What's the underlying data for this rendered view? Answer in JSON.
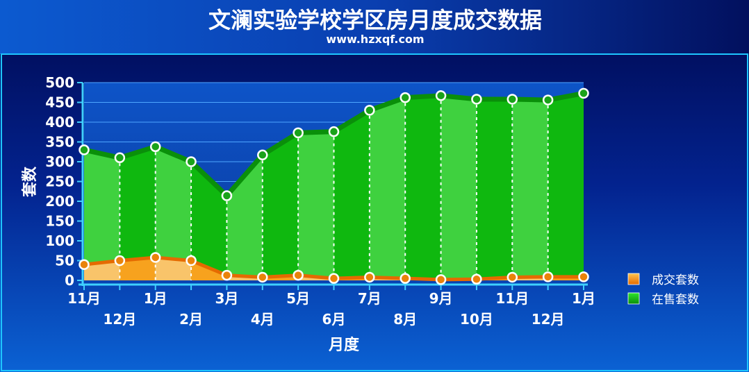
{
  "chart_data": {
    "type": "area",
    "title": "文澜实验学校学区房月度成交数据",
    "subtitle": "www.hzxqf.com",
    "xlabel": "月度",
    "ylabel": "套数",
    "ylim": [
      0,
      500
    ],
    "yticks": [
      0,
      50,
      100,
      150,
      200,
      250,
      300,
      350,
      400,
      450,
      500
    ],
    "categories": [
      "11月",
      "12月",
      "1月",
      "2月",
      "3月",
      "4月",
      "5月",
      "6月",
      "7月",
      "8月",
      "9月",
      "10月",
      "11月",
      "12月",
      "1月"
    ],
    "series": [
      {
        "name": "成交套数",
        "color": "#f39c12",
        "values": [
          40,
          50,
          58,
          50,
          13,
          8,
          13,
          5,
          8,
          5,
          2,
          3,
          8,
          9,
          9
        ]
      },
      {
        "name": "在售套数",
        "color": "#1ec81e",
        "values": [
          330,
          310,
          338,
          300,
          214,
          317,
          373,
          376,
          430,
          462,
          467,
          458,
          458,
          456,
          473
        ]
      }
    ],
    "legend_position": "right",
    "grid": true
  },
  "colors": {
    "background_top": "#00084f",
    "background_bottom": "#0a5fd0",
    "green_fill": "#15c415",
    "green_edge": "#0a8f0a",
    "orange_fill": "#f7a21e",
    "orange_edge": "#e56a00",
    "axis": "#3fd0ff",
    "grid": "#4ea6ff"
  }
}
